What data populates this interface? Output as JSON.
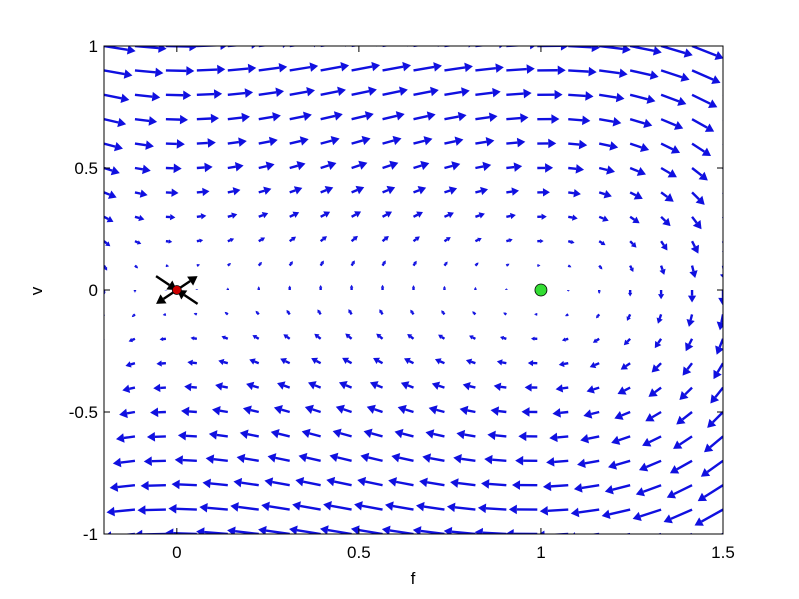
{
  "chart_data": {
    "type": "quiver",
    "xlabel": "f",
    "ylabel": "v",
    "xlim": [
      -0.2,
      1.5
    ],
    "ylim": [
      -1,
      1
    ],
    "xticks": [
      "0",
      "0.5",
      "1",
      "1.5"
    ],
    "xtick_values": [
      0,
      0.5,
      1,
      1.5
    ],
    "yticks": [
      "-1",
      "-0.5",
      "0",
      "0.5",
      "1"
    ],
    "ytick_values": [
      -1,
      -0.5,
      0,
      0.5,
      1
    ],
    "grid": false,
    "legend": "none",
    "vector_field": {
      "system": "df/dt = v ; dv/dt = f - f^2",
      "x_range": [
        -0.2,
        1.5
      ],
      "y_range": [
        -1,
        1
      ],
      "nx": 21,
      "ny": 21,
      "color": "#1010e0"
    },
    "fixed_points": [
      {
        "x": 0,
        "y": 0,
        "kind": "saddle",
        "color": "#cc0000"
      },
      {
        "x": 1,
        "y": 0,
        "kind": "center",
        "color": "#33dd33"
      }
    ],
    "saddle_eigenvectors": [
      {
        "dx": 1,
        "dy": 1,
        "direction": "unstable"
      },
      {
        "dx": 1,
        "dy": -1,
        "direction": "stable"
      }
    ],
    "eigenvector_color": "#000000"
  }
}
